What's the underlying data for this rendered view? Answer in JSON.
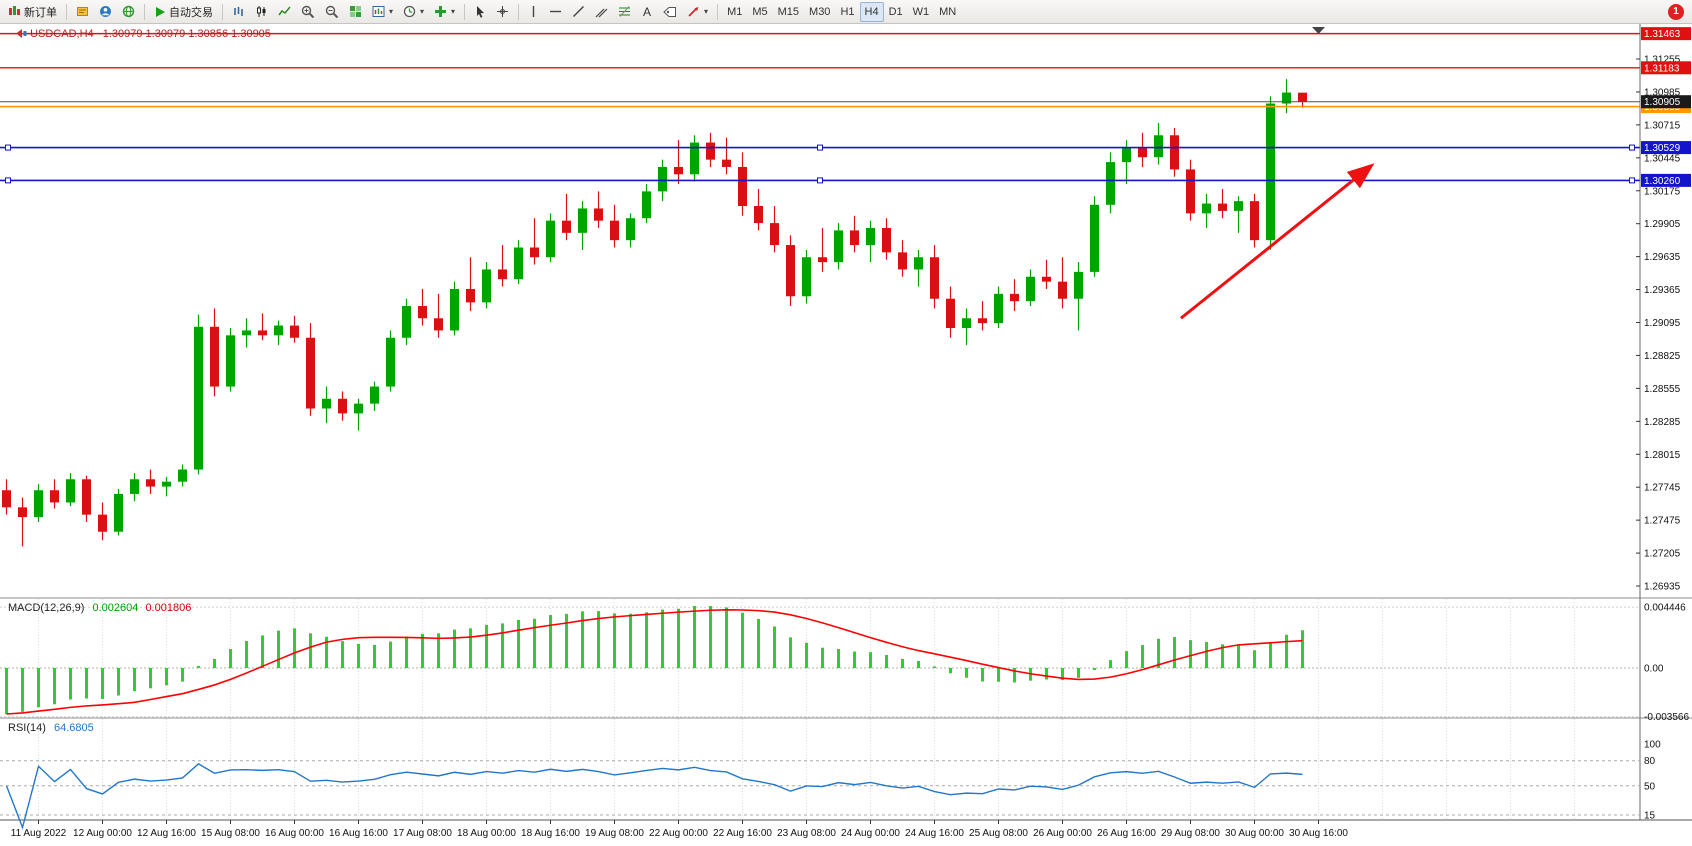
{
  "toolbar": {
    "new_order_label": "新订单",
    "autotrading_label": "自动交易",
    "timeframe_labels": [
      "M1",
      "M5",
      "M15",
      "M30",
      "H1",
      "H4",
      "D1",
      "W1",
      "MN"
    ],
    "active_timeframe": "H4",
    "notification_count": "1"
  },
  "chart_header": {
    "symbol_title": "USDCAD,H4",
    "ohlc_values": "1.30979 1.30979 1.30856 1.30905"
  },
  "indicators": {
    "macd": {
      "label": "MACD(12,26,9)",
      "value_main": "0.002604",
      "value_signal": "0.001806",
      "scale_labels": [
        {
          "text": "0.004446",
          "value": 0.004446
        },
        {
          "text": "0.00",
          "value": 0
        },
        {
          "text": "-0.003566",
          "value": -0.003566
        }
      ]
    },
    "rsi": {
      "label": "RSI(14)",
      "value": "64.6805",
      "levels": [
        {
          "text": "100",
          "value": 100
        },
        {
          "text": "80",
          "value": 80
        },
        {
          "text": "50",
          "value": 50
        },
        {
          "text": "15",
          "value": 15
        }
      ]
    }
  },
  "chart_data": {
    "type": "candlestick",
    "symbol": "USDCAD",
    "timeframe": "H4",
    "digits": 5,
    "current_price": 1.30905,
    "candles": [
      [
        1.2772,
        1.2781,
        1.2752,
        1.2758
      ],
      [
        1.2758,
        1.2766,
        1.2726,
        1.275
      ],
      [
        1.275,
        1.2777,
        1.2746,
        1.2772
      ],
      [
        1.2772,
        1.2781,
        1.2757,
        1.2762
      ],
      [
        1.2762,
        1.2786,
        1.2759,
        1.2781
      ],
      [
        1.2781,
        1.2784,
        1.2746,
        1.2752
      ],
      [
        1.2752,
        1.2762,
        1.2731,
        1.2738
      ],
      [
        1.2738,
        1.2773,
        1.2735,
        1.2769
      ],
      [
        1.2769,
        1.2786,
        1.2763,
        1.2781
      ],
      [
        1.2781,
        1.2789,
        1.2769,
        1.2775
      ],
      [
        1.2775,
        1.2783,
        1.2767,
        1.2779
      ],
      [
        1.2779,
        1.2793,
        1.2775,
        1.2789
      ],
      [
        1.2789,
        1.2916,
        1.2785,
        1.2906
      ],
      [
        1.2906,
        1.2921,
        1.2849,
        1.2857
      ],
      [
        1.2857,
        1.2905,
        1.2853,
        1.2899
      ],
      [
        1.2899,
        1.2913,
        1.2889,
        1.2903
      ],
      [
        1.2903,
        1.2917,
        1.2895,
        1.2899
      ],
      [
        1.2899,
        1.2911,
        1.2891,
        1.2907
      ],
      [
        1.2907,
        1.2915,
        1.2893,
        1.2897
      ],
      [
        1.2897,
        1.2909,
        1.2833,
        1.2839
      ],
      [
        1.2839,
        1.2857,
        1.2827,
        1.2847
      ],
      [
        1.2847,
        1.2853,
        1.2829,
        1.2835
      ],
      [
        1.2835,
        1.2847,
        1.2821,
        1.2843
      ],
      [
        1.2843,
        1.2861,
        1.2837,
        1.2857
      ],
      [
        1.2857,
        1.2903,
        1.2853,
        1.2897
      ],
      [
        1.2897,
        1.2929,
        1.2891,
        1.2923
      ],
      [
        1.2923,
        1.2937,
        1.2907,
        1.2913
      ],
      [
        1.2913,
        1.2933,
        1.2897,
        1.2903
      ],
      [
        1.2903,
        1.2943,
        1.2899,
        1.2937
      ],
      [
        1.2937,
        1.2963,
        1.2919,
        1.2926
      ],
      [
        1.2926,
        1.2959,
        1.2921,
        1.2953
      ],
      [
        1.2953,
        1.2973,
        1.2939,
        1.2945
      ],
      [
        1.2945,
        1.2977,
        1.2941,
        1.2971
      ],
      [
        1.2971,
        1.2995,
        1.2957,
        1.2963
      ],
      [
        1.2963,
        1.2999,
        1.2959,
        1.2993
      ],
      [
        1.2993,
        1.3015,
        1.2977,
        1.2983
      ],
      [
        1.2983,
        1.3009,
        1.2969,
        1.3003
      ],
      [
        1.3003,
        1.3017,
        1.2987,
        1.2993
      ],
      [
        1.2993,
        1.3006,
        1.2971,
        1.2977
      ],
      [
        1.2977,
        1.2999,
        1.2971,
        1.2995
      ],
      [
        1.2995,
        1.3023,
        1.2991,
        1.3017
      ],
      [
        1.3017,
        1.3043,
        1.3009,
        1.3037
      ],
      [
        1.3037,
        1.3059,
        1.3023,
        1.3031
      ],
      [
        1.3031,
        1.3063,
        1.3025,
        1.3057
      ],
      [
        1.3057,
        1.3065,
        1.3037,
        1.3043
      ],
      [
        1.3043,
        1.3061,
        1.3031,
        1.3037
      ],
      [
        1.3037,
        1.3049,
        1.2997,
        1.3005
      ],
      [
        1.3005,
        1.3019,
        1.2985,
        1.2991
      ],
      [
        1.2991,
        1.3005,
        1.2967,
        1.2973
      ],
      [
        1.2973,
        1.2981,
        1.2923,
        1.2931
      ],
      [
        1.2931,
        1.2969,
        1.2925,
        1.2963
      ],
      [
        1.2963,
        1.2987,
        1.2951,
        1.2959
      ],
      [
        1.2959,
        1.2991,
        1.2953,
        1.2985
      ],
      [
        1.2985,
        1.2997,
        1.2967,
        1.2973
      ],
      [
        1.2973,
        1.2993,
        1.2959,
        1.2987
      ],
      [
        1.2987,
        1.2995,
        1.2961,
        1.2967
      ],
      [
        1.2967,
        1.2977,
        1.2947,
        1.2953
      ],
      [
        1.2953,
        1.2969,
        1.2939,
        1.2963
      ],
      [
        1.2963,
        1.2973,
        1.2921,
        1.2929
      ],
      [
        1.2929,
        1.2939,
        1.2897,
        1.2905
      ],
      [
        1.2905,
        1.2921,
        1.2891,
        1.2913
      ],
      [
        1.2913,
        1.2927,
        1.2903,
        1.2909
      ],
      [
        1.2909,
        1.2939,
        1.2905,
        1.2933
      ],
      [
        1.2933,
        1.2945,
        1.2919,
        1.2927
      ],
      [
        1.2927,
        1.2953,
        1.2923,
        1.2947
      ],
      [
        1.2947,
        1.2961,
        1.2937,
        1.2943
      ],
      [
        1.2943,
        1.2963,
        1.2921,
        1.2929
      ],
      [
        1.2929,
        1.2959,
        1.2903,
        1.2951
      ],
      [
        1.2951,
        1.3013,
        1.2947,
        1.3006
      ],
      [
        1.3006,
        1.3049,
        1.2999,
        1.3041
      ],
      [
        1.3041,
        1.3059,
        1.3023,
        1.3053
      ],
      [
        1.3053,
        1.3065,
        1.3037,
        1.3045
      ],
      [
        1.3045,
        1.3073,
        1.3039,
        1.3063
      ],
      [
        1.3063,
        1.3069,
        1.3029,
        1.3035
      ],
      [
        1.3035,
        1.3043,
        1.2993,
        1.2999
      ],
      [
        1.2999,
        1.3015,
        1.2987,
        1.3007
      ],
      [
        1.3007,
        1.3019,
        1.2995,
        1.3001
      ],
      [
        1.3001,
        1.3013,
        1.2983,
        1.3009
      ],
      [
        1.3009,
        1.3015,
        1.2971,
        1.2977
      ],
      [
        1.2977,
        1.3095,
        1.2969,
        1.3089
      ],
      [
        1.3089,
        1.3109,
        1.3081,
        1.3098
      ],
      [
        1.30979,
        1.30979,
        1.30856,
        1.30905
      ]
    ],
    "x_labels": [
      {
        "bar": 2,
        "label": "11 Aug 2022"
      },
      {
        "bar": 6,
        "label": "12 Aug 00:00"
      },
      {
        "bar": 10,
        "label": "12 Aug 16:00"
      },
      {
        "bar": 14,
        "label": "15 Aug 08:00"
      },
      {
        "bar": 18,
        "label": "16 Aug 00:00"
      },
      {
        "bar": 22,
        "label": "16 Aug 16:00"
      },
      {
        "bar": 26,
        "label": "17 Aug 08:00"
      },
      {
        "bar": 30,
        "label": "18 Aug 00:00"
      },
      {
        "bar": 34,
        "label": "18 Aug 16:00"
      },
      {
        "bar": 38,
        "label": "19 Aug 08:00"
      },
      {
        "bar": 42,
        "label": "22 Aug 00:00"
      },
      {
        "bar": 46,
        "label": "22 Aug 16:00"
      },
      {
        "bar": 50,
        "label": "23 Aug 08:00"
      },
      {
        "bar": 54,
        "label": "24 Aug 00:00"
      },
      {
        "bar": 58,
        "label": "24 Aug 16:00"
      },
      {
        "bar": 62,
        "label": "25 Aug 08:00"
      },
      {
        "bar": 66,
        "label": "26 Aug 00:00"
      },
      {
        "bar": 70,
        "label": "26 Aug 16:00"
      },
      {
        "bar": 74,
        "label": "29 Aug 08:00"
      },
      {
        "bar": 78,
        "label": "30 Aug 00:00"
      },
      {
        "bar": 82,
        "label": "30 Aug 16:00"
      }
    ],
    "y_axis_labels": [
      1.31255,
      1.30985,
      1.30715,
      1.30445,
      1.30175,
      1.29905,
      1.29635,
      1.29365,
      1.29095,
      1.28825,
      1.28555,
      1.28285,
      1.28015,
      1.27745,
      1.27475,
      1.27205,
      1.26935
    ],
    "price_lines": [
      {
        "name": "resistance-upper",
        "price": 1.31463,
        "color": "#e01010",
        "width": 1.4
      },
      {
        "name": "resistance-lower",
        "price": 1.31183,
        "color": "#e01010",
        "width": 1.4
      },
      {
        "name": "orange-level",
        "price": 1.30865,
        "color": "#ff9900",
        "width": 1.6
      },
      {
        "name": "current-price",
        "price": 1.30905,
        "color": "#505050",
        "width": 1,
        "badge": "#1a1a1a"
      },
      {
        "name": "support-upper",
        "price": 1.30529,
        "color": "#1414cc",
        "width": 1.6,
        "handles": true
      },
      {
        "name": "support-lower",
        "price": 1.3026,
        "color": "#1414cc",
        "width": 1.6,
        "handles": true
      }
    ],
    "trend_arrow": {
      "from_bar": 73.4,
      "from_price": 1.2913,
      "to_bar": 85.2,
      "to_price": 1.3037,
      "color": "#ee1111"
    },
    "macd_params": {
      "fast": 12,
      "slow": 26,
      "signal": 9
    },
    "rsi_period": 14,
    "colors": {
      "candle_up": "#00a400",
      "candle_down": "#dd1010",
      "macd_hist": "#33cc33",
      "macd_signal": "#ff0000",
      "rsi_line": "#2277cc"
    }
  }
}
